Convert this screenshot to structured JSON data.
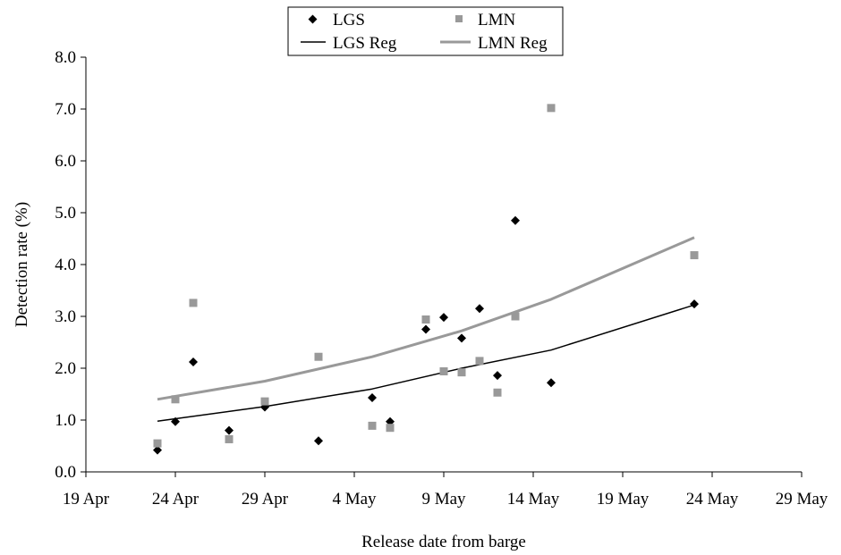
{
  "chart_data": {
    "type": "scatter",
    "title": "",
    "xlabel": "Release date from barge",
    "ylabel": "Detection rate  (%)",
    "x_axis": {
      "type": "date",
      "range": [
        "2000-04-19",
        "2000-05-29"
      ],
      "tick_labels": [
        "19 Apr",
        "24 Apr",
        "29 Apr",
        "4 May",
        "9 May",
        "14 May",
        "19 May",
        "24 May",
        "29 May"
      ]
    },
    "y_axis": {
      "range": [
        0,
        8
      ],
      "tick_labels": [
        "0.0",
        "1.0",
        "2.0",
        "3.0",
        "4.0",
        "5.0",
        "6.0",
        "7.0",
        "8.0"
      ]
    },
    "grid": false,
    "legend": {
      "placement": "top",
      "entries": [
        {
          "label": "LGS",
          "marker": "diamond",
          "color": "#000000"
        },
        {
          "label": "LMN",
          "marker": "square",
          "color": "#999999"
        },
        {
          "label": "LGS Reg",
          "marker": "line",
          "color": "#000000"
        },
        {
          "label": "LMN Reg",
          "marker": "line",
          "color": "#999999"
        }
      ]
    },
    "series": [
      {
        "name": "LGS",
        "kind": "scatter",
        "marker": "diamond",
        "color": "#000000",
        "points": [
          {
            "x": "2000-04-23",
            "y": 0.42
          },
          {
            "x": "2000-04-24",
            "y": 0.97
          },
          {
            "x": "2000-04-25",
            "y": 2.12
          },
          {
            "x": "2000-04-27",
            "y": 0.8
          },
          {
            "x": "2000-04-29",
            "y": 1.25
          },
          {
            "x": "2000-05-02",
            "y": 0.6
          },
          {
            "x": "2000-05-05",
            "y": 1.43
          },
          {
            "x": "2000-05-06",
            "y": 0.97
          },
          {
            "x": "2000-05-08",
            "y": 2.75
          },
          {
            "x": "2000-05-09",
            "y": 2.98
          },
          {
            "x": "2000-05-10",
            "y": 2.58
          },
          {
            "x": "2000-05-11",
            "y": 3.15
          },
          {
            "x": "2000-05-12",
            "y": 1.86
          },
          {
            "x": "2000-05-13",
            "y": 4.85
          },
          {
            "x": "2000-05-15",
            "y": 1.72
          },
          {
            "x": "2000-05-23",
            "y": 3.24
          }
        ]
      },
      {
        "name": "LMN",
        "kind": "scatter",
        "marker": "square",
        "color": "#999999",
        "points": [
          {
            "x": "2000-04-23",
            "y": 0.55
          },
          {
            "x": "2000-04-24",
            "y": 1.4
          },
          {
            "x": "2000-04-25",
            "y": 3.26
          },
          {
            "x": "2000-04-27",
            "y": 0.63
          },
          {
            "x": "2000-04-29",
            "y": 1.36
          },
          {
            "x": "2000-05-02",
            "y": 2.22
          },
          {
            "x": "2000-05-05",
            "y": 0.89
          },
          {
            "x": "2000-05-06",
            "y": 0.85
          },
          {
            "x": "2000-05-08",
            "y": 2.94
          },
          {
            "x": "2000-05-09",
            "y": 1.94
          },
          {
            "x": "2000-05-10",
            "y": 1.92
          },
          {
            "x": "2000-05-11",
            "y": 2.14
          },
          {
            "x": "2000-05-12",
            "y": 1.53
          },
          {
            "x": "2000-05-13",
            "y": 3.0
          },
          {
            "x": "2000-05-15",
            "y": 7.02
          },
          {
            "x": "2000-05-23",
            "y": 4.18
          }
        ]
      },
      {
        "name": "LGS Reg",
        "kind": "line",
        "color": "#000000",
        "points": [
          {
            "x": "2000-04-23",
            "y": 0.98
          },
          {
            "x": "2000-04-29",
            "y": 1.26
          },
          {
            "x": "2000-05-05",
            "y": 1.6
          },
          {
            "x": "2000-05-10",
            "y": 2.0
          },
          {
            "x": "2000-05-15",
            "y": 2.35
          },
          {
            "x": "2000-05-23",
            "y": 3.22
          }
        ]
      },
      {
        "name": "LMN Reg",
        "kind": "line",
        "color": "#999999",
        "points": [
          {
            "x": "2000-04-23",
            "y": 1.4
          },
          {
            "x": "2000-04-29",
            "y": 1.75
          },
          {
            "x": "2000-05-05",
            "y": 2.22
          },
          {
            "x": "2000-05-10",
            "y": 2.72
          },
          {
            "x": "2000-05-15",
            "y": 3.33
          },
          {
            "x": "2000-05-23",
            "y": 4.52
          }
        ]
      }
    ]
  }
}
